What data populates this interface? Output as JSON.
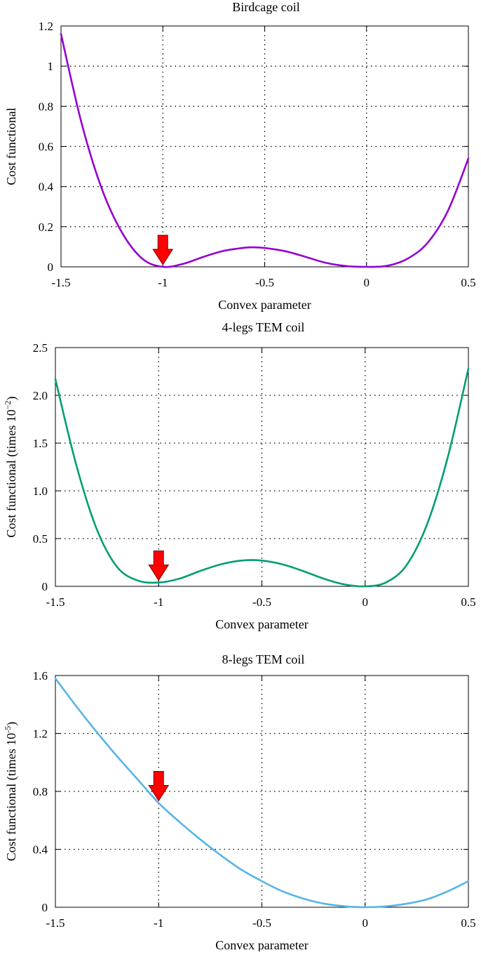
{
  "chart_data": [
    {
      "type": "line",
      "title": "Birdcage coil",
      "xlabel": "Convex parameter",
      "ylabel": "Cost functional",
      "ylabel_suffix": "",
      "ylabel_exponent": "",
      "xlim": [
        -1.5,
        0.5
      ],
      "ylim": [
        0,
        1.2
      ],
      "xticks": [
        -1.5,
        -1,
        -0.5,
        0,
        0.5
      ],
      "xtick_labels": [
        "-1.5",
        "-1",
        "-0.5",
        "0",
        "0.5"
      ],
      "yticks": [
        0,
        0.2,
        0.4,
        0.6,
        0.8,
        1,
        1.2
      ],
      "ytick_labels": [
        "0",
        "0.2",
        "0.4",
        "0.6",
        "0.8",
        "1",
        "1.2"
      ],
      "grid": true,
      "line_color": "#9400d3",
      "arrow_color": "#ff0000",
      "arrow_at": {
        "x": -1.0,
        "y": 0.0
      },
      "series": [
        {
          "name": "Birdcage coil",
          "x": [
            -1.5,
            -1.4,
            -1.3,
            -1.2,
            -1.1,
            -1.0,
            -0.9,
            -0.8,
            -0.7,
            -0.6,
            -0.55,
            -0.5,
            -0.4,
            -0.3,
            -0.2,
            -0.1,
            0.0,
            0.1,
            0.2,
            0.3,
            0.4,
            0.5
          ],
          "y": [
            1.16,
            0.72,
            0.39,
            0.17,
            0.04,
            0.0,
            0.015,
            0.05,
            0.08,
            0.095,
            0.097,
            0.094,
            0.078,
            0.05,
            0.02,
            0.004,
            0.0,
            0.005,
            0.04,
            0.12,
            0.28,
            0.54
          ]
        }
      ]
    },
    {
      "type": "line",
      "title": "4-legs TEM coil",
      "xlabel": "Convex parameter",
      "ylabel": "Cost functional (times 10",
      "ylabel_suffix": ")",
      "ylabel_exponent": "−2",
      "xlim": [
        -1.5,
        0.5
      ],
      "ylim": [
        0,
        2.5
      ],
      "xticks": [
        -1.5,
        -1,
        -0.5,
        0,
        0.5
      ],
      "xtick_labels": [
        "-1.5",
        "-1",
        "-0.5",
        "0",
        "0.5"
      ],
      "yticks": [
        0,
        0.5,
        1.0,
        1.5,
        2.0,
        2.5
      ],
      "ytick_labels": [
        "0",
        "0.5",
        "1.0",
        "1.5",
        "2.0",
        "2.5"
      ],
      "grid": true,
      "line_color": "#009e73",
      "arrow_color": "#ff0000",
      "arrow_at": {
        "x": -1.0,
        "y": 0.04
      },
      "series": [
        {
          "name": "4-legs TEM coil",
          "x": [
            -1.5,
            -1.4,
            -1.3,
            -1.2,
            -1.1,
            -1.0,
            -0.9,
            -0.8,
            -0.7,
            -0.6,
            -0.5,
            -0.4,
            -0.3,
            -0.2,
            -0.1,
            0.0,
            0.1,
            0.2,
            0.3,
            0.4,
            0.5
          ],
          "y": [
            2.17,
            1.28,
            0.6,
            0.2,
            0.06,
            0.04,
            0.08,
            0.16,
            0.23,
            0.27,
            0.27,
            0.23,
            0.16,
            0.08,
            0.02,
            0.0,
            0.04,
            0.22,
            0.65,
            1.35,
            2.28
          ]
        }
      ]
    },
    {
      "type": "line",
      "title": "8-legs TEM coil",
      "xlabel": "Convex parameter",
      "ylabel": "Cost functional (times 10",
      "ylabel_suffix": ")",
      "ylabel_exponent": "-5",
      "xlim": [
        -1.5,
        0.5
      ],
      "ylim": [
        0,
        1.6
      ],
      "xticks": [
        -1.5,
        -1,
        -0.5,
        0,
        0.5
      ],
      "xtick_labels": [
        "-1.5",
        "-1",
        "-0.5",
        "0",
        "0.5"
      ],
      "yticks": [
        0,
        0.4,
        0.8,
        1.2,
        1.6
      ],
      "ytick_labels": [
        "0",
        "0.4",
        "0.8",
        "1.2",
        "1.6"
      ],
      "grid": true,
      "line_color": "#56b4e9",
      "arrow_color": "#ff0000",
      "arrow_at": {
        "x": -1.0,
        "y": 0.72
      },
      "series": [
        {
          "name": "8-legs TEM coil",
          "x": [
            -1.5,
            -1.4,
            -1.3,
            -1.2,
            -1.1,
            -1.0,
            -0.9,
            -0.8,
            -0.7,
            -0.6,
            -0.5,
            -0.4,
            -0.3,
            -0.2,
            -0.1,
            0.0,
            0.1,
            0.2,
            0.3,
            0.4,
            0.5
          ],
          "y": [
            1.58,
            1.39,
            1.21,
            1.04,
            0.88,
            0.72,
            0.59,
            0.47,
            0.36,
            0.26,
            0.18,
            0.11,
            0.06,
            0.025,
            0.007,
            0.0,
            0.006,
            0.024,
            0.055,
            0.11,
            0.18
          ]
        }
      ]
    }
  ]
}
